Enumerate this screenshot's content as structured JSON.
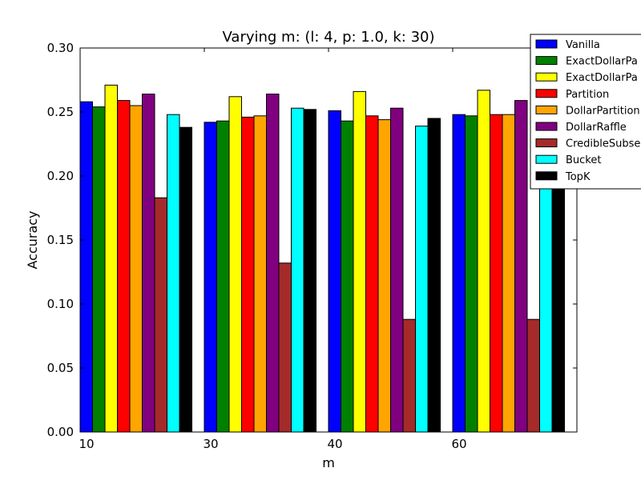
{
  "chart_data": {
    "type": "bar",
    "title": "Varying m: (l: 4, p: 1.0, k: 30)",
    "xlabel": "m",
    "ylabel": "Accuracy",
    "categories": [
      "10",
      "30",
      "40",
      "60"
    ],
    "ylim": [
      0.0,
      0.3
    ],
    "yticks": [
      "0.00",
      "0.05",
      "0.10",
      "0.15",
      "0.20",
      "0.25",
      "0.30"
    ],
    "grid": false,
    "legend_position": "top-right",
    "series": [
      {
        "name": "Vanilla",
        "color": "#0000ff",
        "values": [
          0.258,
          0.242,
          0.251,
          0.248
        ]
      },
      {
        "name": "ExactDollarPa",
        "color": "#008000",
        "values": [
          0.254,
          0.243,
          0.243,
          0.247
        ]
      },
      {
        "name": "ExactDollarPa",
        "color": "#ffff00",
        "values": [
          0.271,
          0.262,
          0.266,
          0.267
        ]
      },
      {
        "name": "Partition",
        "color": "#ff0000",
        "values": [
          0.259,
          0.246,
          0.247,
          0.248
        ]
      },
      {
        "name": "DollarPartition",
        "color": "#ffa500",
        "values": [
          0.255,
          0.247,
          0.244,
          0.248
        ]
      },
      {
        "name": "DollarRaffle",
        "color": "#800080",
        "values": [
          0.264,
          0.264,
          0.253,
          0.259
        ]
      },
      {
        "name": "CredibleSubse",
        "color": "#a52a2a",
        "values": [
          0.183,
          0.132,
          0.088,
          0.088
        ]
      },
      {
        "name": "Bucket",
        "color": "#00ffff",
        "values": [
          0.248,
          0.253,
          0.239,
          0.248
        ]
      },
      {
        "name": "TopK",
        "color": "#000000",
        "values": [
          0.238,
          0.252,
          0.245,
          0.248
        ]
      }
    ]
  }
}
